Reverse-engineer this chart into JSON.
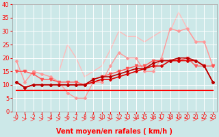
{
  "background_color": "#cce8e8",
  "grid_color": "#ffffff",
  "xlabel": "Vent moyen/en rafales ( km/h )",
  "xlabel_color": "#ff0000",
  "xlabel_fontsize": 7,
  "tick_color": "#ff0000",
  "xlim": [
    -0.5,
    23.5
  ],
  "ylim": [
    0,
    40
  ],
  "yticks": [
    0,
    5,
    10,
    15,
    20,
    25,
    30,
    35,
    40
  ],
  "xticks": [
    0,
    1,
    2,
    3,
    4,
    5,
    6,
    7,
    8,
    9,
    10,
    11,
    12,
    13,
    14,
    15,
    16,
    17,
    18,
    19,
    20,
    21,
    22,
    23
  ],
  "lines": [
    {
      "x": [
        0,
        1,
        2,
        3,
        4,
        5,
        6,
        7,
        8,
        9,
        10,
        11,
        12,
        13,
        14,
        15,
        16,
        17,
        18,
        19,
        20,
        21,
        22,
        23
      ],
      "y": [
        8,
        8,
        8,
        8,
        8,
        8,
        8,
        8,
        8,
        8,
        8,
        8,
        8,
        8,
        8,
        8,
        8,
        8,
        8,
        8,
        8,
        8,
        8,
        8
      ],
      "color": "#ff0000",
      "linewidth": 1.5,
      "marker": null,
      "zorder": 3
    },
    {
      "x": [
        0,
        1,
        2,
        3,
        4,
        5,
        6,
        7,
        8,
        9,
        10,
        11,
        12,
        13,
        14,
        15,
        16,
        17,
        18,
        19,
        20,
        21,
        22,
        23
      ],
      "y": [
        11,
        9,
        10,
        10,
        10,
        10,
        10,
        10,
        10,
        11,
        12,
        12,
        13,
        14,
        15,
        16,
        17,
        17,
        19,
        19,
        19,
        19,
        17,
        11
      ],
      "color": "#dd0000",
      "linewidth": 1.2,
      "marker": "D",
      "markersize": 2,
      "zorder": 4
    },
    {
      "x": [
        0,
        1,
        2,
        3,
        4,
        5,
        6,
        7,
        8,
        9,
        10,
        11,
        12,
        13,
        14,
        15,
        16,
        17,
        18,
        19,
        20,
        21,
        22,
        23
      ],
      "y": [
        11,
        9,
        10,
        10,
        10,
        10,
        10,
        10,
        10,
        12,
        13,
        13,
        14,
        15,
        16,
        16,
        18,
        19,
        19,
        20,
        20,
        19,
        17,
        11
      ],
      "color": "#bb0000",
      "linewidth": 1.2,
      "marker": "D",
      "markersize": 2,
      "zorder": 4
    },
    {
      "x": [
        0,
        1,
        2,
        3,
        4,
        5,
        6,
        7,
        8,
        9,
        10,
        11,
        12,
        13,
        14,
        15,
        16,
        17,
        18,
        19,
        20,
        21,
        22,
        23
      ],
      "y": [
        15,
        15,
        14,
        12,
        12,
        11,
        11,
        11,
        10,
        12,
        13,
        14,
        15,
        16,
        17,
        17,
        19,
        19,
        19,
        19,
        20,
        17,
        17,
        17
      ],
      "color": "#ff5555",
      "linewidth": 1.0,
      "marker": "v",
      "markersize": 3,
      "zorder": 3
    },
    {
      "x": [
        0,
        1,
        2,
        3,
        4,
        5,
        6,
        7,
        8,
        9,
        10,
        11,
        12,
        13,
        14,
        15,
        16,
        17,
        18,
        19,
        20,
        21,
        22,
        23
      ],
      "y": [
        19,
        11,
        15,
        14,
        13,
        11,
        7,
        5,
        5,
        11,
        11,
        17,
        22,
        20,
        20,
        15,
        15,
        20,
        31,
        30,
        31,
        26,
        26,
        17
      ],
      "color": "#ff9999",
      "linewidth": 1.0,
      "marker": "D",
      "markersize": 2,
      "zorder": 2
    },
    {
      "x": [
        0,
        1,
        2,
        3,
        4,
        5,
        6,
        7,
        8,
        9,
        10,
        11,
        12,
        13,
        14,
        15,
        16,
        17,
        18,
        19,
        20,
        21,
        22,
        23
      ],
      "y": [
        15,
        15,
        15,
        15,
        15,
        15,
        25,
        20,
        13,
        15,
        17,
        23,
        30,
        28,
        28,
        26,
        28,
        30,
        30,
        37,
        31,
        26,
        26,
        17
      ],
      "color": "#ffbbbb",
      "linewidth": 1.0,
      "marker": null,
      "zorder": 1
    }
  ]
}
